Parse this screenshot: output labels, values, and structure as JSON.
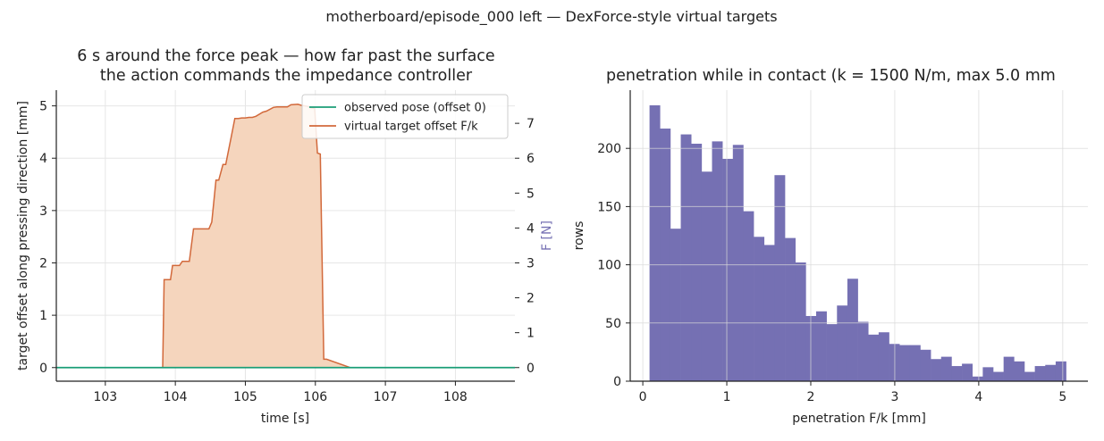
{
  "suptitle": "motherboard/episode_000 left — DexForce-style virtual targets",
  "chart_data": [
    {
      "type": "area",
      "title_line1": "6 s around the force peak — how far past the surface",
      "title_line2": "the action commands the impedance controller",
      "xlabel": "time [s]",
      "ylabel": "target offset along pressing direction [mm]",
      "y2label": "F [N]",
      "xlim": [
        102.3,
        108.85
      ],
      "ylim": [
        -0.26,
        5.3
      ],
      "y2lim": [
        -0.39,
        7.95
      ],
      "xticks": [
        103,
        104,
        105,
        106,
        107,
        108
      ],
      "yticks": [
        0,
        1,
        2,
        3,
        4,
        5
      ],
      "y2ticks": [
        0,
        1,
        2,
        3,
        4,
        5,
        6,
        7
      ],
      "grid": true,
      "legend_position": "upper-right",
      "series": [
        {
          "name": "observed pose (offset 0)",
          "color": "#1b9e77",
          "x": [
            102.3,
            108.85
          ],
          "y": [
            0,
            0
          ]
        },
        {
          "name": "virtual target offset F/k",
          "color": "#d2693b",
          "fill": "#f5d5bd",
          "step_x": [
            102.55,
            103.82,
            103.84,
            103.93,
            103.96,
            104.0,
            104.06,
            104.1,
            104.18,
            104.2,
            104.26,
            104.3,
            104.38,
            104.42,
            104.48,
            104.52,
            104.58,
            104.62,
            104.68,
            104.72,
            104.8,
            104.85,
            104.9,
            104.95,
            105.0,
            105.05,
            105.1,
            105.15,
            105.25,
            105.3,
            105.4,
            105.45,
            105.6,
            105.65,
            105.75,
            105.8,
            105.85,
            105.89,
            105.94,
            105.99,
            106.03,
            106.07,
            106.12,
            106.16,
            106.5,
            108.55
          ],
          "step_y": [
            0,
            0,
            1.68,
            1.68,
            1.95,
            1.95,
            1.95,
            2.03,
            2.03,
            2.03,
            2.65,
            2.65,
            2.65,
            2.65,
            2.65,
            2.78,
            3.58,
            3.58,
            3.88,
            3.88,
            4.42,
            4.76,
            4.76,
            4.77,
            4.77,
            4.78,
            4.78,
            4.8,
            4.88,
            4.9,
            4.97,
            4.98,
            4.98,
            5.02,
            5.03,
            5.01,
            5.0,
            4.99,
            4.96,
            4.95,
            4.1,
            4.08,
            0.16,
            0.16,
            0,
            0
          ]
        }
      ]
    },
    {
      "type": "bar",
      "title": "penetration while in contact (k = 1500 N/m, max 5.0 mm",
      "xlabel": "penetration F/k [mm]",
      "ylabel": "rows",
      "xlim": [
        -0.15,
        5.3
      ],
      "ylim": [
        0,
        250
      ],
      "xticks": [
        0,
        1,
        2,
        3,
        4,
        5
      ],
      "yticks": [
        0,
        50,
        100,
        150,
        200
      ],
      "grid": true,
      "color": "#7570b3",
      "bin_start": 0.08,
      "bin_width": 0.124,
      "values": [
        237,
        217,
        131,
        212,
        204,
        180,
        206,
        191,
        203,
        146,
        124,
        117,
        177,
        123,
        102,
        56,
        60,
        49,
        65,
        88,
        51,
        40,
        42,
        32,
        31,
        31,
        27,
        19,
        21,
        13,
        15,
        4,
        12,
        8,
        21,
        17,
        8,
        13,
        14,
        17
      ]
    }
  ]
}
